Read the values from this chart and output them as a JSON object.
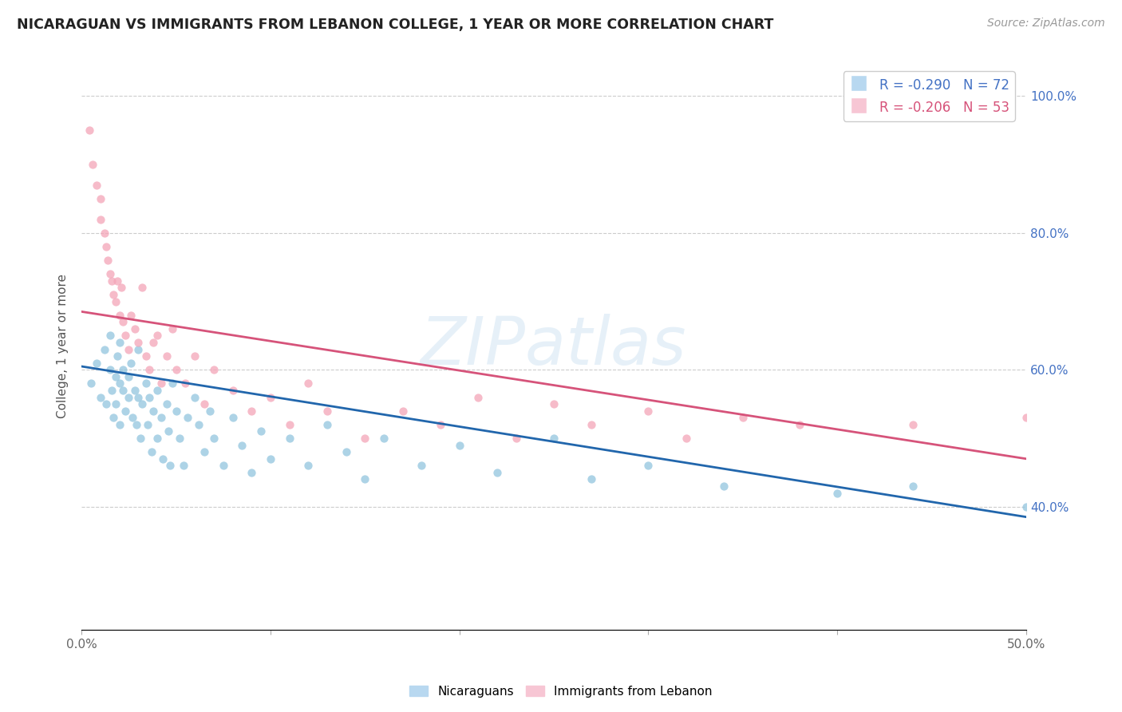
{
  "title": "NICARAGUAN VS IMMIGRANTS FROM LEBANON COLLEGE, 1 YEAR OR MORE CORRELATION CHART",
  "source": "Source: ZipAtlas.com",
  "ylabel": "College, 1 year or more",
  "legend_label1": "Nicaraguans",
  "legend_label2": "Immigrants from Lebanon",
  "blue_color": "#92c5de",
  "pink_color": "#f4a5b8",
  "blue_line_color": "#2166ac",
  "pink_line_color": "#d6537a",
  "xmin": 0.0,
  "xmax": 0.5,
  "ymin": 0.22,
  "ymax": 1.05,
  "blue_R": -0.29,
  "blue_N": 72,
  "pink_R": -0.206,
  "pink_N": 53,
  "blue_line_x0": 0.0,
  "blue_line_y0": 0.605,
  "blue_line_x1": 0.5,
  "blue_line_y1": 0.385,
  "pink_line_x0": 0.0,
  "pink_line_y0": 0.685,
  "pink_line_x1": 0.5,
  "pink_line_y1": 0.47,
  "blue_scatter_x": [
    0.005,
    0.008,
    0.01,
    0.012,
    0.013,
    0.015,
    0.015,
    0.016,
    0.017,
    0.018,
    0.018,
    0.019,
    0.02,
    0.02,
    0.02,
    0.022,
    0.022,
    0.023,
    0.025,
    0.025,
    0.026,
    0.027,
    0.028,
    0.029,
    0.03,
    0.03,
    0.031,
    0.032,
    0.034,
    0.035,
    0.036,
    0.037,
    0.038,
    0.04,
    0.04,
    0.042,
    0.043,
    0.045,
    0.046,
    0.047,
    0.048,
    0.05,
    0.052,
    0.054,
    0.056,
    0.06,
    0.062,
    0.065,
    0.068,
    0.07,
    0.075,
    0.08,
    0.085,
    0.09,
    0.095,
    0.1,
    0.11,
    0.12,
    0.13,
    0.14,
    0.15,
    0.16,
    0.18,
    0.2,
    0.22,
    0.25,
    0.27,
    0.3,
    0.34,
    0.4,
    0.44,
    0.5
  ],
  "blue_scatter_y": [
    0.58,
    0.61,
    0.56,
    0.63,
    0.55,
    0.6,
    0.65,
    0.57,
    0.53,
    0.59,
    0.55,
    0.62,
    0.58,
    0.64,
    0.52,
    0.57,
    0.6,
    0.54,
    0.59,
    0.56,
    0.61,
    0.53,
    0.57,
    0.52,
    0.56,
    0.63,
    0.5,
    0.55,
    0.58,
    0.52,
    0.56,
    0.48,
    0.54,
    0.57,
    0.5,
    0.53,
    0.47,
    0.55,
    0.51,
    0.46,
    0.58,
    0.54,
    0.5,
    0.46,
    0.53,
    0.56,
    0.52,
    0.48,
    0.54,
    0.5,
    0.46,
    0.53,
    0.49,
    0.45,
    0.51,
    0.47,
    0.5,
    0.46,
    0.52,
    0.48,
    0.44,
    0.5,
    0.46,
    0.49,
    0.45,
    0.5,
    0.44,
    0.46,
    0.43,
    0.42,
    0.43,
    0.4
  ],
  "pink_scatter_x": [
    0.004,
    0.006,
    0.008,
    0.01,
    0.01,
    0.012,
    0.013,
    0.014,
    0.015,
    0.016,
    0.017,
    0.018,
    0.019,
    0.02,
    0.021,
    0.022,
    0.023,
    0.025,
    0.026,
    0.028,
    0.03,
    0.032,
    0.034,
    0.036,
    0.038,
    0.04,
    0.042,
    0.045,
    0.048,
    0.05,
    0.055,
    0.06,
    0.065,
    0.07,
    0.08,
    0.09,
    0.1,
    0.11,
    0.12,
    0.13,
    0.15,
    0.17,
    0.19,
    0.21,
    0.23,
    0.25,
    0.27,
    0.3,
    0.32,
    0.35,
    0.38,
    0.44,
    0.5
  ],
  "pink_scatter_y": [
    0.95,
    0.9,
    0.87,
    0.85,
    0.82,
    0.8,
    0.78,
    0.76,
    0.74,
    0.73,
    0.71,
    0.7,
    0.73,
    0.68,
    0.72,
    0.67,
    0.65,
    0.63,
    0.68,
    0.66,
    0.64,
    0.72,
    0.62,
    0.6,
    0.64,
    0.65,
    0.58,
    0.62,
    0.66,
    0.6,
    0.58,
    0.62,
    0.55,
    0.6,
    0.57,
    0.54,
    0.56,
    0.52,
    0.58,
    0.54,
    0.5,
    0.54,
    0.52,
    0.56,
    0.5,
    0.55,
    0.52,
    0.54,
    0.5,
    0.53,
    0.52,
    0.52,
    0.53
  ]
}
